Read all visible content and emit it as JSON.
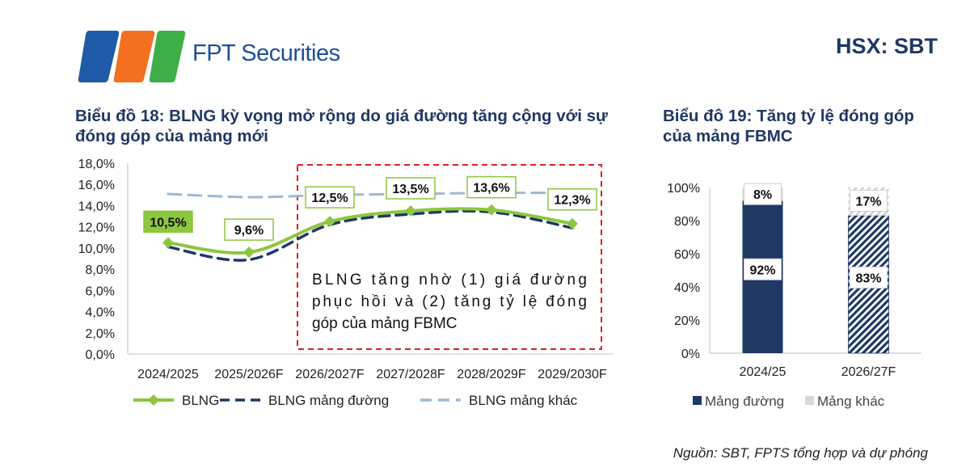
{
  "header": {
    "brand": "FPT Securities",
    "ticker": "HSX: SBT",
    "colors": {
      "orange": "#f37021",
      "blue": "#1e5aa8",
      "green": "#3fae49"
    }
  },
  "chart18_title": "Biểu đồ 18: BLNG kỳ vọng mở rộng do giá đường tăng cộng với sự đóng góp của mảng mới",
  "chart19_title": "Biểu đô 19: Tăng tỷ lệ đóng góp của mảng FBMC",
  "annotation": "BLNG tăng nhờ (1) giá đường phục hồi và (2) tăng tỷ lệ đóng góp của mảng FBMC",
  "source": "Nguồn: SBT, FPTS tổng hợp và dự phóng",
  "chart_data": [
    {
      "type": "line",
      "categories": [
        "2024/2025",
        "2025/2026F",
        "2026/2027F",
        "2027/2028F",
        "2028/2029F",
        "2029/2030F"
      ],
      "series": [
        {
          "name": "BLNG",
          "values": [
            10.5,
            9.6,
            12.5,
            13.5,
            13.6,
            12.3
          ],
          "color": "#8dc63f",
          "data_labels": [
            "10,5%",
            "9,6%",
            "12,5%",
            "13,5%",
            "13,6%",
            "12,3%"
          ]
        },
        {
          "name": "BLNG mảng đường",
          "values": [
            10.1,
            8.9,
            12.2,
            13.2,
            13.4,
            11.9
          ],
          "color": "#1f3864"
        },
        {
          "name": "BLNG mảng khác",
          "values": [
            15.1,
            14.8,
            15.0,
            15.1,
            15.2,
            15.2
          ],
          "color": "#9db8d6"
        }
      ],
      "ylim": [
        0,
        18
      ],
      "yticks": [
        "0,0%",
        "2,0%",
        "4,0%",
        "6,0%",
        "8,0%",
        "10,0%",
        "12,0%",
        "14,0%",
        "16,0%",
        "18,0%"
      ],
      "legend_position": "bottom"
    },
    {
      "type": "bar",
      "stacked": true,
      "categories": [
        "2024/25",
        "2026/27F"
      ],
      "series": [
        {
          "name": "Mảng đường",
          "values": [
            92,
            83
          ],
          "labels": [
            "92%",
            "83%"
          ],
          "color": "#1f3864"
        },
        {
          "name": "Mảng khác",
          "values": [
            8,
            17
          ],
          "labels": [
            "8%",
            "17%"
          ],
          "color": "#d9d9d9"
        }
      ],
      "ylim": [
        0,
        100
      ],
      "yticks": [
        "0%",
        "20%",
        "40%",
        "60%",
        "80%",
        "100%"
      ],
      "legend_position": "bottom"
    }
  ]
}
